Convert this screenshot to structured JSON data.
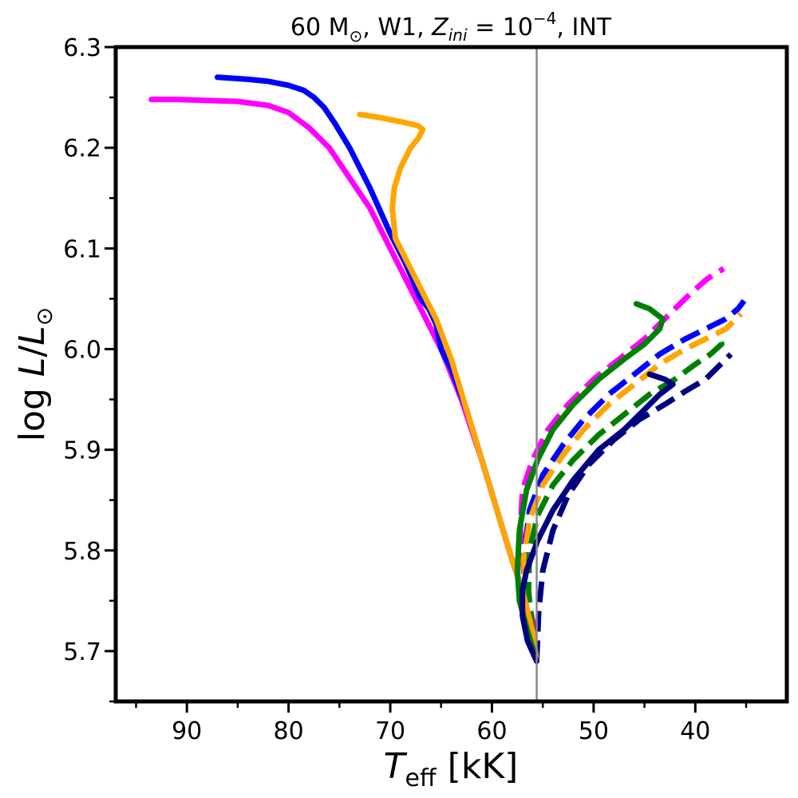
{
  "chart_data": {
    "type": "line",
    "title": {
      "mass": "60 M",
      "sun_symbol": "⊙",
      "wind": ", W1, ",
      "z_symbol": "Z",
      "z_subscript": "ini",
      "z_value": " = 10",
      "z_exponent": "−4",
      "suffix": ", INT"
    },
    "xlabel": {
      "symbol": "T",
      "subscript": "eff",
      "unit": " [kK]"
    },
    "ylabel": {
      "prefix": "log ",
      "L": "L",
      "slash": "/",
      "L2": "L",
      "sun_symbol": "⊙"
    },
    "xlim": [
      97,
      31
    ],
    "ylim": [
      5.65,
      6.3
    ],
    "x_ticks": [
      90,
      80,
      70,
      60,
      50,
      40
    ],
    "x_tick_labels": [
      "90",
      "80",
      "70",
      "60",
      "50",
      "40"
    ],
    "y_ticks": [
      5.7,
      5.8,
      5.9,
      6.0,
      6.1,
      6.2,
      6.3
    ],
    "y_tick_labels": [
      "5.7",
      "5.8",
      "5.9",
      "6.0",
      "6.1",
      "6.2",
      "6.3"
    ],
    "vline": {
      "x": 55.6,
      "color": "#888888"
    },
    "grid": false,
    "colors": {
      "magenta": "#ff00ff",
      "blue": "#0000ff",
      "orange": "#ffa500",
      "green": "#008000",
      "navy": "#000080"
    },
    "series": [
      {
        "color": "#ff00ff",
        "dash": "solid",
        "x": [
          55.6,
          56.0,
          57.0,
          58.0,
          59.5,
          61.0,
          63.0,
          65.0,
          66.5,
          68.0,
          70.0,
          72.0,
          74.0,
          76.0,
          78.0,
          80.0,
          82.0,
          85.0,
          88.0,
          91.0,
          93.5
        ],
        "y": [
          5.69,
          5.72,
          5.76,
          5.79,
          5.84,
          5.89,
          5.95,
          6.0,
          6.03,
          6.06,
          6.1,
          6.14,
          6.17,
          6.2,
          6.22,
          6.235,
          6.242,
          6.246,
          6.247,
          6.248,
          6.248
        ]
      },
      {
        "color": "#0000ff",
        "dash": "solid",
        "x": [
          55.6,
          56.0,
          57.0,
          58.0,
          59.5,
          61.0,
          62.5,
          64.0,
          65.0,
          65.5,
          66.2,
          67.0,
          68.5,
          70.0,
          72.0,
          74.0,
          75.5,
          76.5,
          77.5,
          78.5,
          80.0,
          82.0,
          84.0,
          87.0
        ],
        "y": [
          5.69,
          5.72,
          5.76,
          5.79,
          5.84,
          5.89,
          5.94,
          5.98,
          6.0,
          6.025,
          6.04,
          6.05,
          6.085,
          6.115,
          6.16,
          6.2,
          6.225,
          6.24,
          6.25,
          6.257,
          6.262,
          6.266,
          6.268,
          6.27
        ]
      },
      {
        "color": "#ffa500",
        "dash": "solid",
        "x": [
          55.6,
          56.0,
          57.0,
          58.0,
          59.5,
          61.0,
          62.5,
          64.0,
          65.5,
          67.0,
          68.5,
          69.5,
          69.8,
          69.6,
          69.0,
          68.0,
          67.2,
          66.8,
          67.3,
          69.0,
          71.0,
          73.0
        ],
        "y": [
          5.69,
          5.72,
          5.76,
          5.79,
          5.84,
          5.89,
          5.94,
          5.99,
          6.03,
          6.06,
          6.09,
          6.11,
          6.14,
          6.16,
          6.18,
          6.2,
          6.21,
          6.218,
          6.222,
          6.226,
          6.23,
          6.233
        ]
      },
      {
        "color": "#ff00ff",
        "dash": "dashed",
        "x": [
          55.6,
          56.0,
          56.8,
          57.2,
          57.0,
          56.0,
          54.5,
          52.5,
          50.0,
          47.5,
          45.0,
          42.5,
          40.5,
          38.8,
          37.2
        ],
        "y": [
          5.69,
          5.73,
          5.77,
          5.82,
          5.86,
          5.89,
          5.92,
          5.945,
          5.97,
          5.99,
          6.01,
          6.035,
          6.055,
          6.07,
          6.08
        ]
      },
      {
        "color": "#0000ff",
        "dash": "dashed",
        "x": [
          55.6,
          56.0,
          56.6,
          56.8,
          56.3,
          55.0,
          53.0,
          51.0,
          48.5,
          46.0,
          43.5,
          41.0,
          39.0,
          37.0,
          35.8,
          35.2
        ],
        "y": [
          5.69,
          5.72,
          5.76,
          5.8,
          5.84,
          5.875,
          5.905,
          5.93,
          5.955,
          5.975,
          5.995,
          6.01,
          6.02,
          6.03,
          6.04,
          6.048
        ]
      },
      {
        "color": "#ffa500",
        "dash": "dashed",
        "x": [
          55.6,
          56.0,
          56.6,
          56.9,
          56.3,
          55.0,
          53.0,
          51.0,
          48.5,
          46.0,
          43.5,
          41.0,
          39.0,
          37.0,
          35.5
        ],
        "y": [
          5.69,
          5.72,
          5.76,
          5.79,
          5.83,
          5.865,
          5.895,
          5.92,
          5.945,
          5.965,
          5.985,
          6.0,
          6.01,
          6.02,
          6.035
        ]
      },
      {
        "color": "#008000",
        "dash": "dashed",
        "x": [
          55.6,
          56.0,
          56.4,
          56.3,
          55.5,
          54.0,
          52.0,
          49.5,
          47.0,
          44.5,
          42.0,
          40.0,
          38.5,
          37.4,
          37.6
        ],
        "y": [
          5.69,
          5.72,
          5.76,
          5.8,
          5.835,
          5.865,
          5.89,
          5.915,
          5.935,
          5.955,
          5.97,
          5.985,
          5.995,
          6.005,
          6.012
        ]
      },
      {
        "color": "#000080",
        "dash": "dashed",
        "x": [
          55.6,
          55.4,
          55.0,
          54.0,
          52.5,
          50.5,
          48.0,
          45.5,
          43.0,
          41.0,
          39.0,
          37.5,
          36.5
        ],
        "y": [
          5.69,
          5.74,
          5.78,
          5.82,
          5.855,
          5.885,
          5.91,
          5.93,
          5.945,
          5.958,
          5.97,
          5.985,
          5.995
        ]
      },
      {
        "color": "#008000",
        "dash": "solid",
        "x": [
          55.6,
          56.5,
          57.3,
          57.5,
          57.3,
          56.6,
          55.5,
          54.0,
          52.0,
          49.5,
          47.0,
          45.0,
          43.5,
          43.2,
          44.5,
          45.8
        ],
        "y": [
          5.69,
          5.72,
          5.75,
          5.78,
          5.82,
          5.86,
          5.89,
          5.92,
          5.945,
          5.97,
          5.99,
          6.005,
          6.02,
          6.03,
          6.04,
          6.045
        ]
      },
      {
        "color": "#000080",
        "dash": "solid",
        "x": [
          55.6,
          56.5,
          57.0,
          57.0,
          56.6,
          55.5,
          54.0,
          52.0,
          49.5,
          47.0,
          45.0,
          43.5,
          42.2,
          43.0,
          44.5
        ],
        "y": [
          5.69,
          5.71,
          5.735,
          5.76,
          5.78,
          5.81,
          5.84,
          5.87,
          5.9,
          5.92,
          5.94,
          5.955,
          5.965,
          5.97,
          5.975
        ]
      }
    ]
  }
}
